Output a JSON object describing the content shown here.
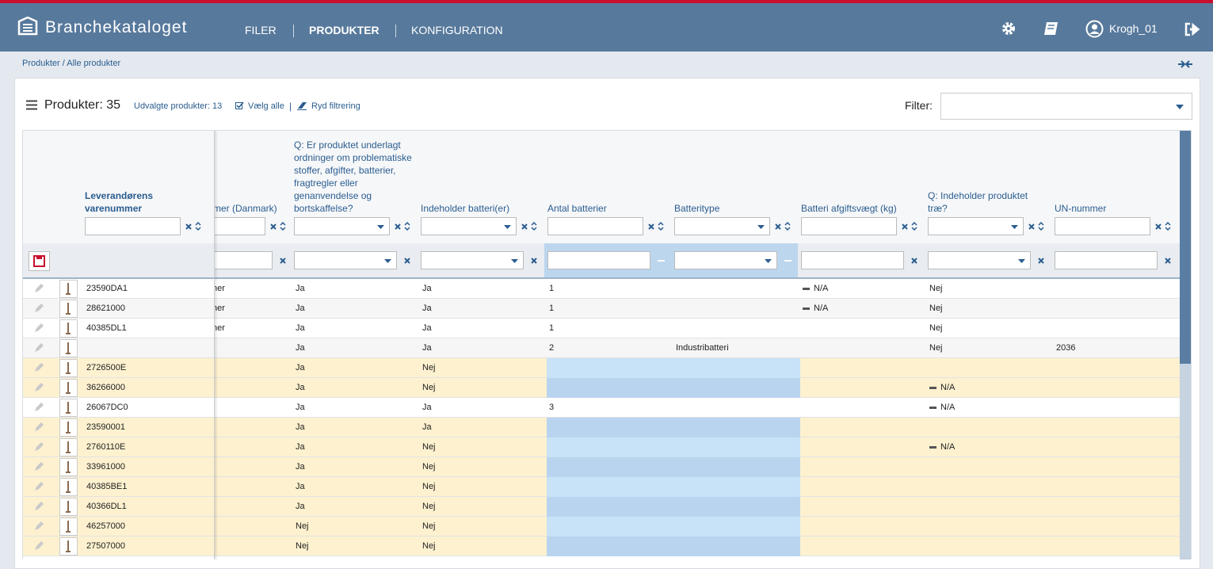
{
  "header": {
    "brand": "Branchekataloget",
    "nav": [
      "FILER",
      "PRODUKTER",
      "KONFIGURATION"
    ],
    "active_nav": 1,
    "user": "Krogh_01"
  },
  "breadcrumb": "Produkter / Alle produkter",
  "toolbar": {
    "title": "Produkter: 35",
    "selected": "Udvalgte produkter: 13",
    "select_all": "Vælg alle",
    "separator": "|",
    "clear": "Ryd filtrering",
    "filter_label": "Filter:"
  },
  "table": {
    "columns": [
      {
        "label": "Leverandørens varenummer",
        "filter": "text",
        "bold": true
      },
      {
        "label": "mer (Danmark)",
        "filter": "text"
      },
      {
        "label": "Q: Er produktet underlagt ordninger om problematiske stoffer, afgifter, batterier, fragtregler eller genanvendelse og bortskaffelse?",
        "filter": "select"
      },
      {
        "label": "Indeholder batteri(er)",
        "filter": "select"
      },
      {
        "label": "Antal batterier",
        "filter": "text",
        "highlighted": true
      },
      {
        "label": "Batteritype",
        "filter": "select",
        "highlighted": true
      },
      {
        "label": "Batteri afgiftsvægt (kg)",
        "filter": "text"
      },
      {
        "label": "Q: Indeholder produktet træ?",
        "filter": "select"
      },
      {
        "label": "UN-nummer",
        "filter": "text"
      }
    ],
    "rows": [
      {
        "highlighted": false,
        "cells": [
          "23590DA1",
          "ner",
          "Ja",
          "Ja",
          "1",
          null,
          {
            "value": "N/A",
            "marker": "dash"
          },
          "Nej",
          null
        ]
      },
      {
        "highlighted": false,
        "cells": [
          "28621000",
          "ner",
          "Ja",
          "Ja",
          "1",
          null,
          {
            "value": "N/A",
            "marker": "dash"
          },
          "Nej",
          null
        ]
      },
      {
        "highlighted": false,
        "cells": [
          "40385DL1",
          "ner",
          "Ja",
          "Ja",
          "1",
          null,
          null,
          "Nej",
          null
        ]
      },
      {
        "highlighted": false,
        "cells": [
          null,
          null,
          "Ja",
          "Ja",
          "2",
          "Industribatteri",
          null,
          "Nej",
          "2036"
        ]
      },
      {
        "highlighted": true,
        "cells": [
          "2726500E",
          null,
          "Ja",
          "Nej",
          null,
          null,
          null,
          null,
          null
        ]
      },
      {
        "highlighted": true,
        "cells": [
          "36266000",
          null,
          "Ja",
          "Nej",
          null,
          null,
          null,
          {
            "value": "N/A",
            "marker": "dash"
          },
          null
        ]
      },
      {
        "highlighted": false,
        "cells": [
          "26067DC0",
          null,
          "Ja",
          "Ja",
          "3",
          null,
          null,
          {
            "value": "N/A",
            "marker": "dash"
          },
          null
        ]
      },
      {
        "highlighted": true,
        "cells": [
          "23590001",
          null,
          "Ja",
          "Ja",
          null,
          null,
          null,
          null,
          null
        ]
      },
      {
        "highlighted": true,
        "cells": [
          "2760110E",
          null,
          "Ja",
          "Nej",
          null,
          null,
          null,
          {
            "value": "N/A",
            "marker": "dash"
          },
          null
        ]
      },
      {
        "highlighted": true,
        "cells": [
          "33961000",
          null,
          "Ja",
          "Nej",
          null,
          null,
          null,
          null,
          null
        ]
      },
      {
        "highlighted": true,
        "cells": [
          "40385BE1",
          null,
          "Ja",
          "Nej",
          null,
          null,
          null,
          null,
          null
        ]
      },
      {
        "highlighted": true,
        "cells": [
          "40366DL1",
          null,
          "Ja",
          "Nej",
          null,
          null,
          null,
          null,
          null
        ]
      },
      {
        "highlighted": true,
        "cells": [
          "46257000",
          null,
          "Nej",
          "Nej",
          null,
          null,
          null,
          null,
          null
        ]
      },
      {
        "highlighted": true,
        "cells": [
          "27507000",
          null,
          "Nej",
          "Nej",
          null,
          null,
          null,
          null,
          null
        ]
      }
    ]
  }
}
